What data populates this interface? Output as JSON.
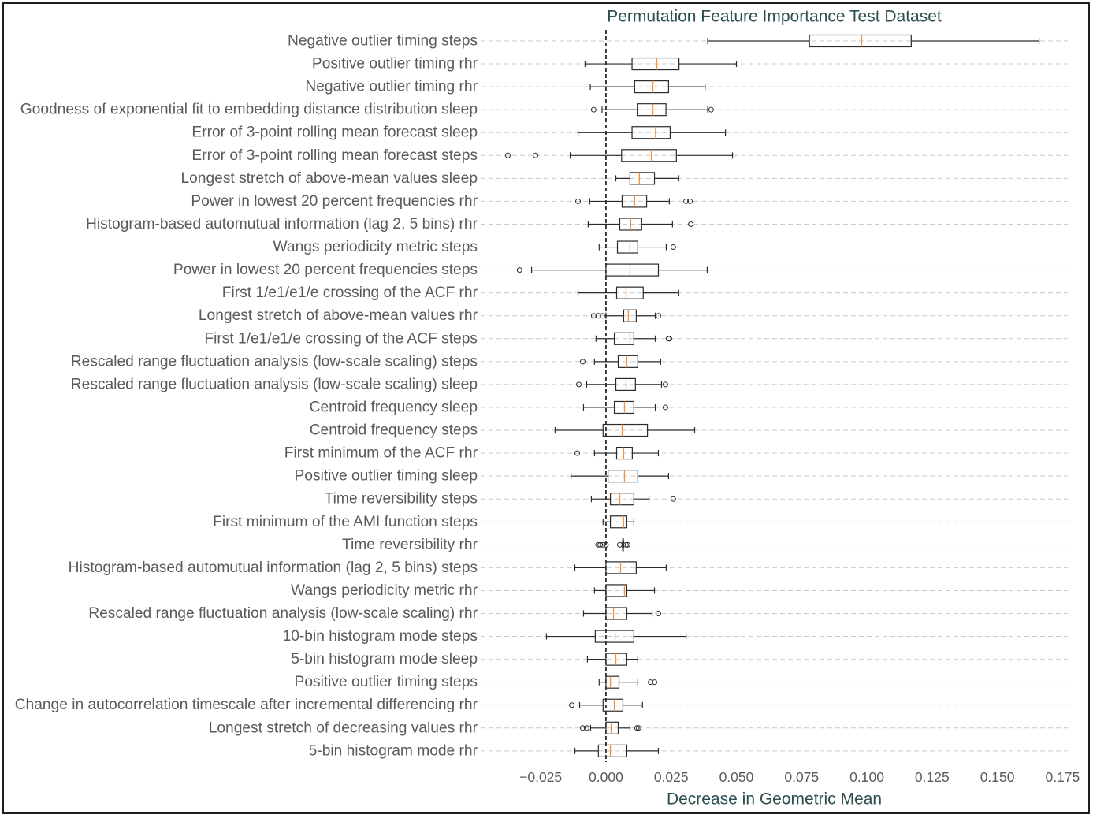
{
  "chart_data": {
    "type": "box",
    "orientation": "horizontal",
    "title": "Permutation Feature Importance Test Dataset",
    "xlabel": "Decrease in Geometric Mean",
    "ylabel": "",
    "xlim": [
      -0.048,
      0.177
    ],
    "xticks": [
      -0.025,
      0,
      0.025,
      0.05,
      0.075,
      0.1,
      0.125,
      0.15,
      0.175
    ],
    "xtick_labels": [
      "−0.025",
      "0.000",
      "0.025",
      "0.050",
      "0.075",
      "0.100",
      "0.125",
      "0.150",
      "0.175"
    ],
    "grid": true,
    "reference_line": {
      "x": 0,
      "style": "dashed"
    },
    "colors": {
      "box": "#2b2b2b",
      "median": "#f5913e",
      "outlier": "#2b2b2b",
      "grid": "#c9c9c9",
      "reference_line": "#111111",
      "title_text": "#2b4f4f",
      "label_text": "#5a5a5a"
    },
    "boxes": [
      {
        "label": "Negative outlier timing steps",
        "whislo": 0.039,
        "q1": 0.078,
        "med": 0.098,
        "q3": 0.117,
        "whishi": 0.166,
        "fliers": []
      },
      {
        "label": "Positive outlier timing rhr",
        "whislo": -0.008,
        "q1": 0.01,
        "med": 0.0195,
        "q3": 0.028,
        "whishi": 0.05,
        "fliers": []
      },
      {
        "label": "Negative outlier timing rhr",
        "whislo": -0.006,
        "q1": 0.011,
        "med": 0.018,
        "q3": 0.024,
        "whishi": 0.038,
        "fliers": []
      },
      {
        "label": "Goodness of exponential fit to embedding distance distribution sleep",
        "whislo": -0.0015,
        "q1": 0.012,
        "med": 0.018,
        "q3": 0.023,
        "whishi": 0.039,
        "fliers": [
          -0.0047,
          0.0403
        ]
      },
      {
        "label": "Error of 3-point rolling mean forecast sleep",
        "whislo": -0.0107,
        "q1": 0.01,
        "med": 0.019,
        "q3": 0.0246,
        "whishi": 0.0458,
        "fliers": []
      },
      {
        "label": "Error of 3-point rolling mean forecast steps",
        "whislo": -0.0137,
        "q1": 0.006,
        "med": 0.0174,
        "q3": 0.027,
        "whishi": 0.0485,
        "fliers": [
          -0.0376,
          -0.027
        ]
      },
      {
        "label": "Longest stretch of above-mean values sleep",
        "whislo": 0.0038,
        "q1": 0.0092,
        "med": 0.0128,
        "q3": 0.0186,
        "whishi": 0.0279,
        "fliers": []
      },
      {
        "label": "Power in lowest 20 percent frequencies rhr",
        "whislo": -0.0062,
        "q1": 0.0062,
        "med": 0.011,
        "q3": 0.0156,
        "whishi": 0.0243,
        "fliers": [
          -0.0107,
          0.0307,
          0.0322
        ]
      },
      {
        "label": "Histogram-based automutual information (lag 2, 5 bins) rhr",
        "whislo": -0.0068,
        "q1": 0.0053,
        "med": 0.0095,
        "q3": 0.0137,
        "whishi": 0.0255,
        "fliers": [
          0.0325
        ]
      },
      {
        "label": "Wangs periodicity metric steps",
        "whislo": -0.0026,
        "q1": 0.0044,
        "med": 0.0092,
        "q3": 0.0122,
        "whishi": 0.0231,
        "fliers": [
          0.0258
        ]
      },
      {
        "label": "Power in lowest 20 percent frequencies steps",
        "whislo": -0.0285,
        "q1": 0.0,
        "med": 0.0092,
        "q3": 0.0201,
        "whishi": 0.0388,
        "fliers": [
          -0.0331
        ]
      },
      {
        "label": "First 1/e1/e1/e crossing of the ACF rhr",
        "whislo": -0.0107,
        "q1": 0.0041,
        "med": 0.0077,
        "q3": 0.0143,
        "whishi": 0.0279,
        "fliers": []
      },
      {
        "label": "Longest stretch of above-mean values rhr",
        "whislo": 0.0,
        "q1": 0.0068,
        "med": 0.0086,
        "q3": 0.0116,
        "whishi": 0.0189,
        "fliers": [
          -0.0047,
          -0.0029,
          -0.0014,
          0.0201
        ]
      },
      {
        "label": "First 1/e1/e1/e crossing of the ACF steps",
        "whislo": -0.0038,
        "q1": 0.0032,
        "med": 0.0092,
        "q3": 0.0107,
        "whishi": 0.0189,
        "fliers": [
          0.024,
          0.0243
        ]
      },
      {
        "label": "Rescaled range fluctuation analysis (low-scale scaling) steps",
        "whislo": -0.0044,
        "q1": 0.0047,
        "med": 0.008,
        "q3": 0.0122,
        "whishi": 0.021,
        "fliers": [
          -0.0089
        ]
      },
      {
        "label": "Rescaled range fluctuation analysis (low-scale scaling) sleep",
        "whislo": -0.0074,
        "q1": 0.0038,
        "med": 0.0077,
        "q3": 0.0113,
        "whishi": 0.0213,
        "fliers": [
          -0.0104,
          0.0228
        ]
      },
      {
        "label": "Centroid frequency sleep",
        "whislo": -0.0086,
        "q1": 0.0032,
        "med": 0.0071,
        "q3": 0.0107,
        "whishi": 0.0189,
        "fliers": [
          0.0228
        ]
      },
      {
        "label": "Centroid frequency steps",
        "whislo": -0.0195,
        "q1": -0.0011,
        "med": 0.0062,
        "q3": 0.0159,
        "whishi": 0.034,
        "fliers": []
      },
      {
        "label": "First minimum of the ACF rhr",
        "whislo": -0.0044,
        "q1": 0.0041,
        "med": 0.0068,
        "q3": 0.0101,
        "whishi": 0.0201,
        "fliers": [
          -0.011
        ]
      },
      {
        "label": "Positive outlier timing sleep",
        "whislo": -0.0134,
        "q1": 0.0008,
        "med": 0.0071,
        "q3": 0.0122,
        "whishi": 0.024,
        "fliers": []
      },
      {
        "label": "Time reversibility steps",
        "whislo": -0.0056,
        "q1": 0.0017,
        "med": 0.0053,
        "q3": 0.0107,
        "whishi": 0.0165,
        "fliers": [
          0.0258
        ]
      },
      {
        "label": "First minimum of the AMI function steps",
        "whislo": -0.0011,
        "q1": 0.0017,
        "med": 0.0068,
        "q3": 0.008,
        "whishi": 0.0107,
        "fliers": []
      },
      {
        "label": "Time reversibility rhr",
        "whislo": 0.0062,
        "q1": 0.0064,
        "med": 0.0065,
        "q3": 0.0067,
        "whishi": 0.0068,
        "fliers": [
          -0.003,
          -0.0022,
          -0.0012,
          0.0,
          0.0053,
          0.0077,
          0.0083
        ]
      },
      {
        "label": "Histogram-based automutual information (lag 2, 5 bins) steps",
        "whislo": -0.0119,
        "q1": 0.0,
        "med": 0.0056,
        "q3": 0.0116,
        "whishi": 0.0231,
        "fliers": []
      },
      {
        "label": "Wangs periodicity metric rhr",
        "whislo": -0.0044,
        "q1": 0.0,
        "med": 0.0071,
        "q3": 0.008,
        "whishi": 0.0186,
        "fliers": []
      },
      {
        "label": "Rescaled range fluctuation analysis (low-scale scaling) rhr",
        "whislo": -0.0086,
        "q1": 0.0,
        "med": 0.0029,
        "q3": 0.008,
        "whishi": 0.0177,
        "fliers": [
          0.0201
        ]
      },
      {
        "label": "10-bin histogram mode steps",
        "whislo": -0.0228,
        "q1": -0.0041,
        "med": 0.0035,
        "q3": 0.0107,
        "whishi": 0.0307,
        "fliers": []
      },
      {
        "label": "5-bin histogram mode sleep",
        "whislo": -0.0071,
        "q1": 0.0,
        "med": 0.0038,
        "q3": 0.008,
        "whishi": 0.0122,
        "fliers": []
      },
      {
        "label": "Positive outlier timing steps",
        "whislo": -0.0026,
        "q1": 0.0,
        "med": 0.0017,
        "q3": 0.005,
        "whishi": 0.0122,
        "fliers": [
          0.0171,
          0.0186
        ]
      },
      {
        "label": "Change in autocorrelation timescale after incremental differencing rhr",
        "whislo": -0.0101,
        "q1": -0.0011,
        "med": 0.0032,
        "q3": 0.0065,
        "whishi": 0.014,
        "fliers": [
          -0.0131
        ]
      },
      {
        "label": "Longest stretch of decreasing values rhr",
        "whislo": -0.0059,
        "q1": 0.0,
        "med": 0.002,
        "q3": 0.0047,
        "whishi": 0.0092,
        "fliers": [
          -0.0089,
          -0.0074,
          0.0119,
          0.0125
        ]
      },
      {
        "label": "5-bin histogram mode rhr",
        "whislo": -0.0119,
        "q1": -0.0029,
        "med": 0.0017,
        "q3": 0.008,
        "whishi": 0.0201,
        "fliers": []
      }
    ]
  }
}
